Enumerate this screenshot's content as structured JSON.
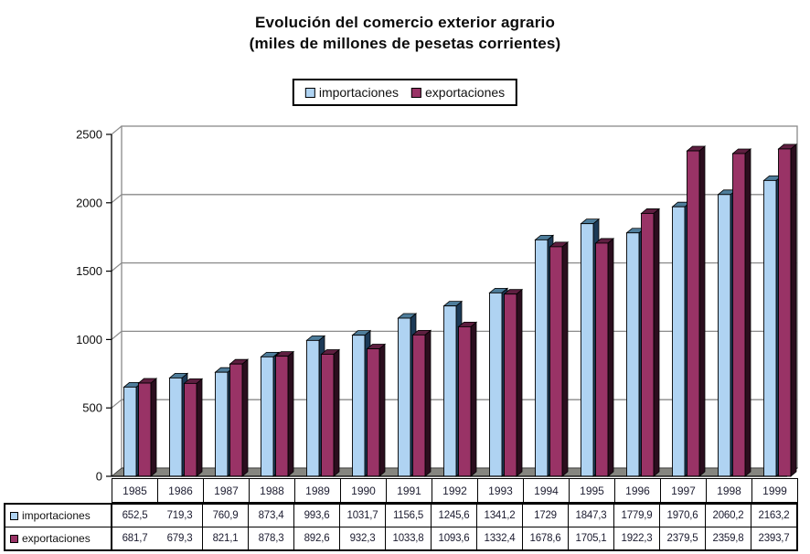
{
  "title": {
    "line1": "Evolución del comercio exterior agrario",
    "line2": "(miles de millones de pesetas corrientes)"
  },
  "legend": {
    "items": [
      {
        "label": "importaciones",
        "color": "#AFD3F2"
      },
      {
        "label": "exportaciones",
        "color": "#993366"
      }
    ]
  },
  "axis": {
    "yticks": [
      "2500",
      "2000",
      "1500",
      "1000",
      "500",
      "0"
    ]
  },
  "chart_data": {
    "type": "bar",
    "style": "3d-clustered",
    "title": "Evolución del comercio exterior agrario (miles de millones de pesetas corrientes)",
    "xlabel": "",
    "ylabel": "",
    "ylim": [
      0,
      2500
    ],
    "ytick_step": 500,
    "grid": true,
    "legend_position": "top",
    "categories": [
      "1985",
      "1986",
      "1987",
      "1988",
      "1989",
      "1990",
      "1991",
      "1992",
      "1993",
      "1994",
      "1995",
      "1996",
      "1997",
      "1998",
      "1999"
    ],
    "series": [
      {
        "name": "importaciones",
        "color": "#AFD3F2",
        "top_color": "#4E7D9B",
        "side_color": "#1C3A57",
        "values": [
          652.5,
          719.3,
          760.9,
          873.4,
          993.6,
          1031.7,
          1156.5,
          1245.6,
          1341.2,
          1729,
          1847.3,
          1779.9,
          1970.6,
          2060.2,
          2163.2
        ]
      },
      {
        "name": "exportaciones",
        "color": "#993366",
        "top_color": "#5E1F40",
        "side_color": "#2B0E1E",
        "values": [
          681.7,
          679.3,
          821.1,
          878.3,
          892.6,
          932.3,
          1033.8,
          1093.6,
          1332.4,
          1678.6,
          1705.1,
          1922.3,
          2379.5,
          2359.8,
          2393.7
        ]
      }
    ],
    "colors": {
      "gridline": "#8a8a8a",
      "wall_edge": "#8a8a8a",
      "floor_fill": "#868680",
      "axis_line": "#000000",
      "bar_outline": "#000000"
    }
  },
  "table": {
    "rows": [
      {
        "label": "importaciones",
        "color": "#AFD3F2",
        "values": [
          "652,5",
          "719,3",
          "760,9",
          "873,4",
          "993,6",
          "1031,7",
          "1156,5",
          "1245,6",
          "1341,2",
          "1729",
          "1847,3",
          "1779,9",
          "1970,6",
          "2060,2",
          "2163,2"
        ]
      },
      {
        "label": "exportaciones",
        "color": "#993366",
        "values": [
          "681,7",
          "679,3",
          "821,1",
          "878,3",
          "892,6",
          "932,3",
          "1033,8",
          "1093,6",
          "1332,4",
          "1678,6",
          "1705,1",
          "1922,3",
          "2379,5",
          "2359,8",
          "2393,7"
        ]
      }
    ]
  }
}
